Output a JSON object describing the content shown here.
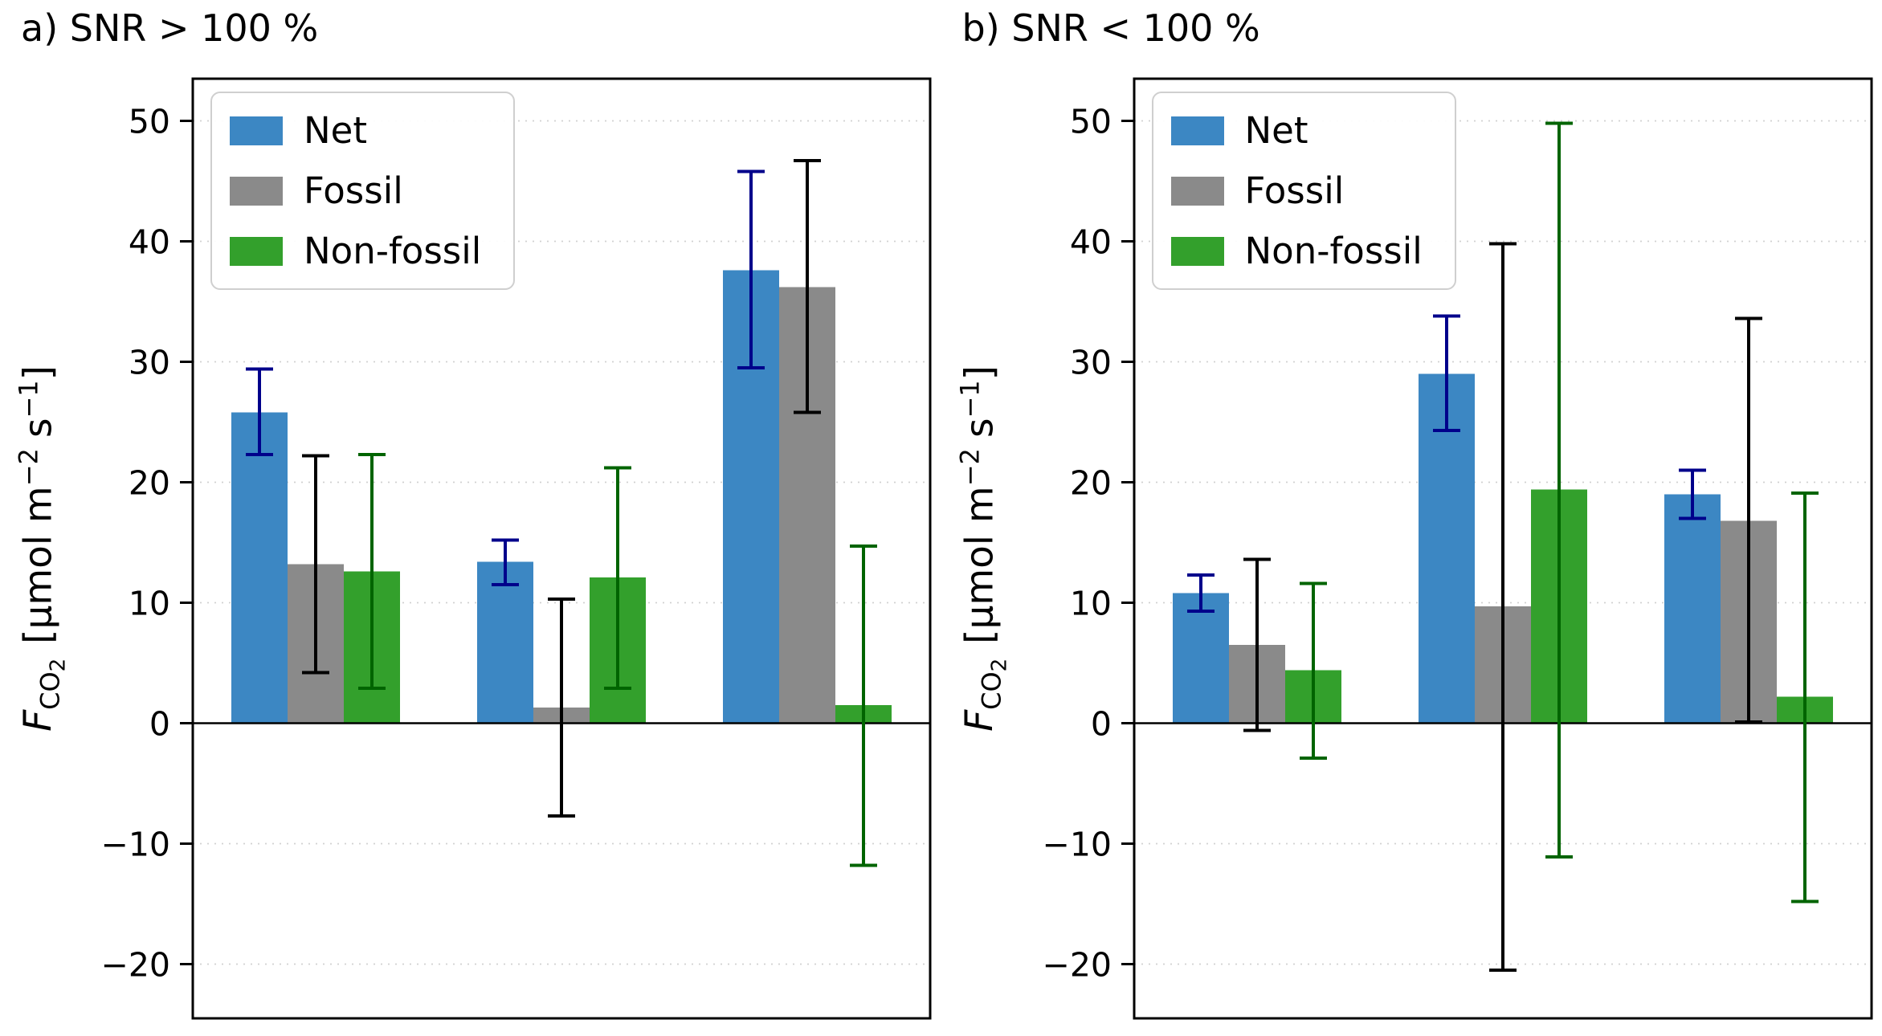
{
  "figure": {
    "ylabel_parts": {
      "f": "F",
      "co": "CO",
      "two": "2",
      "unit_a": "[µmol m",
      "sup_a": "−2",
      "unit_b": "s",
      "sup_b": "−1",
      "unit_c": "]"
    }
  },
  "chart_data": [
    {
      "type": "bar",
      "title": "a) SNR > 100 %",
      "ylabel": "F_CO2 [µmol m^-2 s^-1]",
      "xlabel": "",
      "ylim": [
        -24.5,
        53.5
      ],
      "yticks": [
        -20,
        -10,
        0,
        10,
        20,
        30,
        40,
        50
      ],
      "grid": "horizontal-dotted",
      "legend_position": "upper left",
      "categories": [
        "",
        "",
        ""
      ],
      "series": [
        {
          "name": "Net",
          "color": "#3c87c3",
          "error_color": "#00008b",
          "values": [
            25.8,
            13.4,
            37.6
          ],
          "error_low": [
            22.3,
            11.5,
            29.5
          ],
          "error_high": [
            29.4,
            15.2,
            45.8
          ]
        },
        {
          "name": "Fossil",
          "color": "#8a8a8a",
          "error_color": "#000000",
          "values": [
            13.2,
            1.3,
            36.2
          ],
          "error_low": [
            4.2,
            -7.7,
            25.8
          ],
          "error_high": [
            22.2,
            10.3,
            46.7
          ]
        },
        {
          "name": "Non-fossil",
          "color": "#33a02c",
          "error_color": "#006400",
          "values": [
            12.6,
            12.1,
            1.5
          ],
          "error_low": [
            2.9,
            2.9,
            -11.8
          ],
          "error_high": [
            22.3,
            21.2,
            14.7
          ]
        }
      ]
    },
    {
      "type": "bar",
      "title": "b) SNR < 100 %",
      "ylabel": "F_CO2 [µmol m^-2 s^-1]",
      "xlabel": "",
      "ylim": [
        -24.5,
        53.5
      ],
      "yticks": [
        -20,
        -10,
        0,
        10,
        20,
        30,
        40,
        50
      ],
      "grid": "horizontal-dotted",
      "legend_position": "upper left",
      "categories": [
        "",
        "",
        ""
      ],
      "series": [
        {
          "name": "Net",
          "color": "#3c87c3",
          "error_color": "#00008b",
          "values": [
            10.8,
            29.0,
            19.0
          ],
          "error_low": [
            9.3,
            24.3,
            17.0
          ],
          "error_high": [
            12.3,
            33.8,
            21.0
          ]
        },
        {
          "name": "Fossil",
          "color": "#8a8a8a",
          "error_color": "#000000",
          "values": [
            6.5,
            9.7,
            16.8
          ],
          "error_low": [
            -0.6,
            -20.5,
            0.1
          ],
          "error_high": [
            13.6,
            39.8,
            33.6
          ]
        },
        {
          "name": "Non-fossil",
          "color": "#33a02c",
          "error_color": "#006400",
          "values": [
            4.4,
            19.4,
            2.2
          ],
          "error_low": [
            -2.9,
            -11.1,
            -14.8
          ],
          "error_high": [
            11.6,
            49.8,
            19.1
          ]
        }
      ]
    }
  ]
}
